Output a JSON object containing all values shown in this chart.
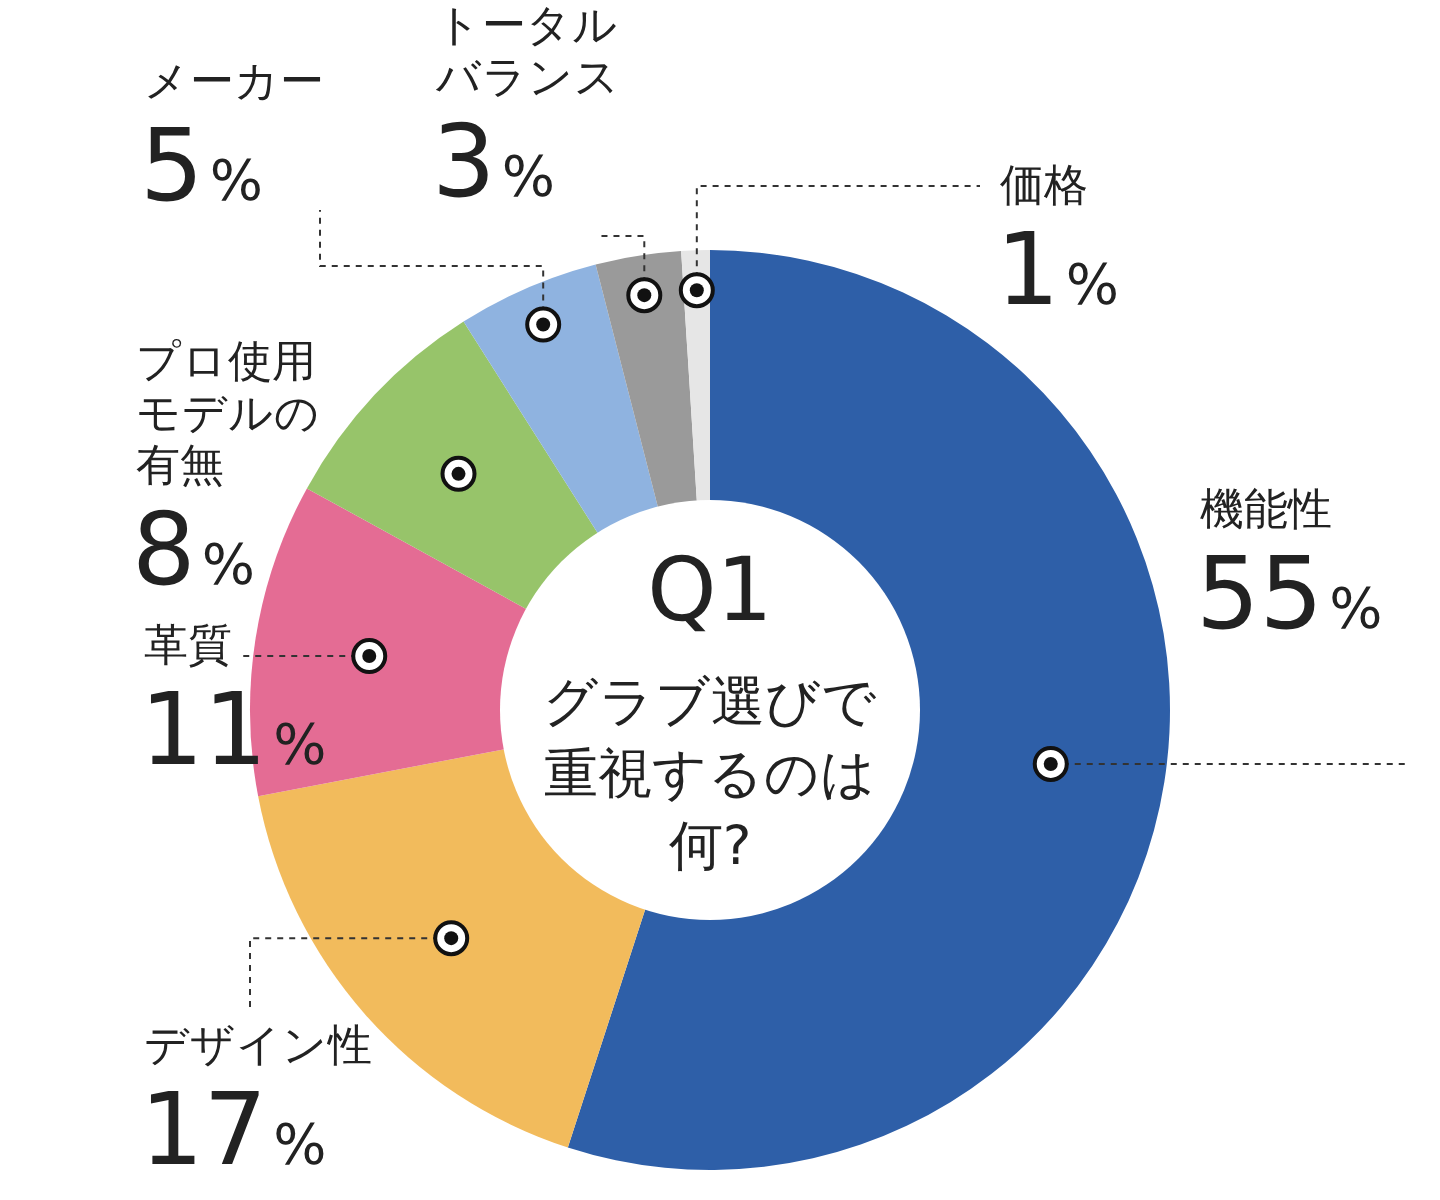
{
  "chart_data": {
    "type": "donut",
    "title": "Q1",
    "subtitle": "グラブ選びで重視するのは何?",
    "categories": [
      "機能性",
      "デザイン性",
      "革質",
      "プロ使用モデルの有無",
      "メーカー",
      "トータルバランス",
      "価格"
    ],
    "values": [
      55,
      17,
      11,
      8,
      5,
      3,
      1
    ],
    "colors": [
      "#2e5fa8",
      "#f2bb5c",
      "#e46c94",
      "#97c46a",
      "#8fb3e0",
      "#9a9a9a",
      "#e6e6e6"
    ],
    "value_labels": [
      "55%",
      "17%",
      "11%",
      "8%",
      "5%",
      "3%",
      "1%"
    ]
  }
}
